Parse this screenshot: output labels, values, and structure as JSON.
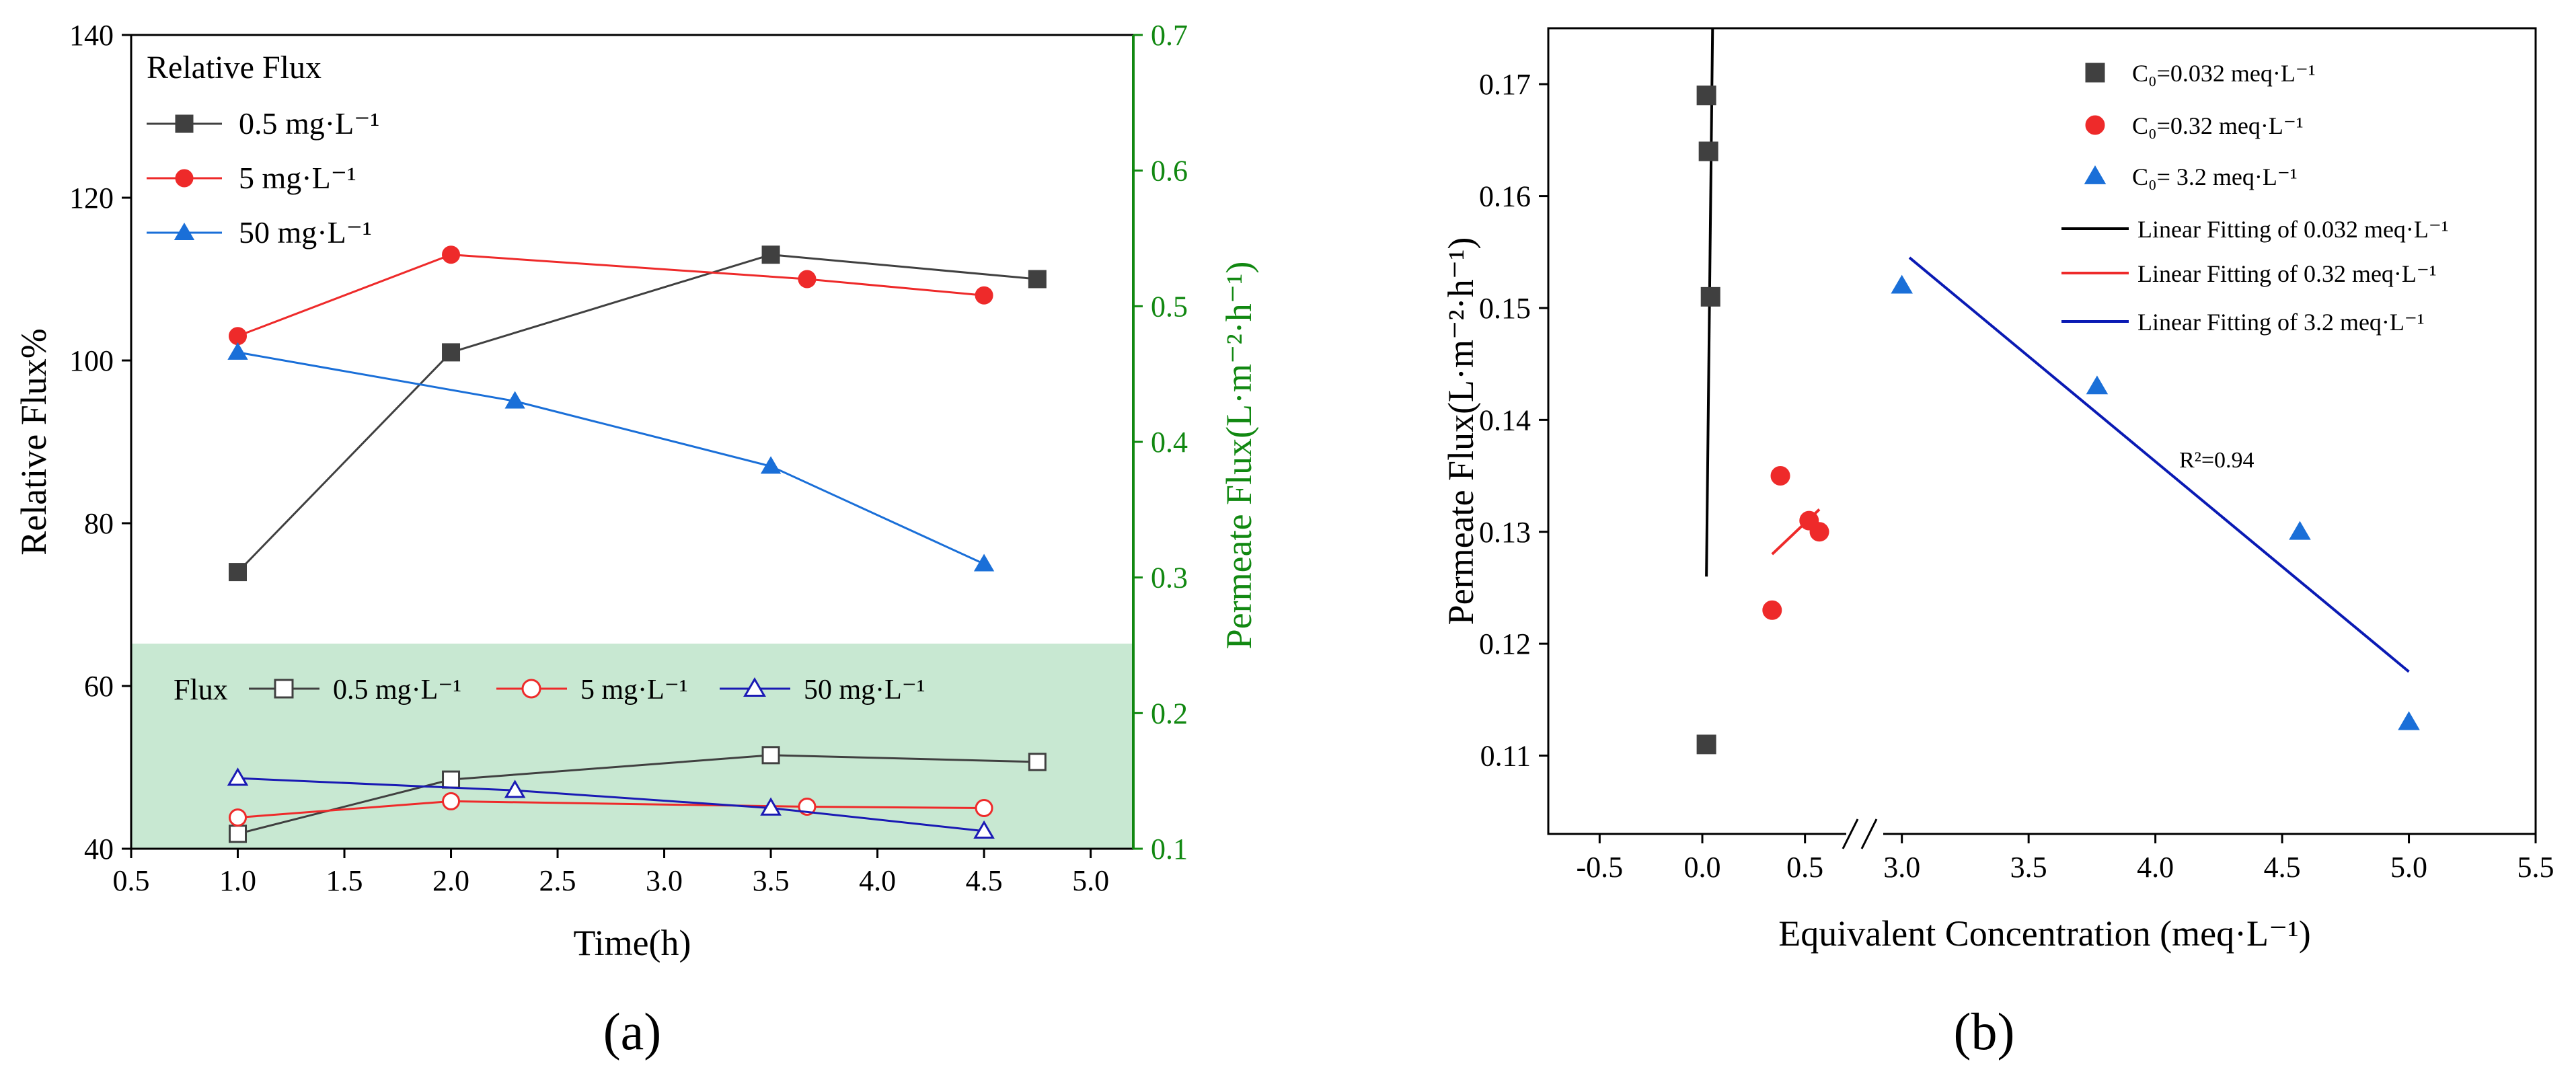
{
  "panel_labels": {
    "a": "(a)",
    "b": "(b)"
  },
  "colors": {
    "black": "#404040",
    "red": "#ee2a2a",
    "blue": "#1a6fd8",
    "green": "#118811",
    "green_fill": "#c8e8d2",
    "navy": "#0a1ab4"
  },
  "chart_data": [
    {
      "type": "line",
      "title": "",
      "xlabel": "Time(h)",
      "ylabel": "Relative Flux%",
      "y2label": "Permeate Flux(L·m⁻²·h⁻¹)",
      "xlim": [
        0.5,
        5.2
      ],
      "ylim": [
        40,
        140
      ],
      "y2lim": [
        0.1,
        0.7
      ],
      "xticks": [
        "0.5",
        "1.0",
        "1.5",
        "2.0",
        "2.5",
        "3.0",
        "3.5",
        "4.0",
        "4.5",
        "5.0"
      ],
      "yticks": [
        "40",
        "60",
        "80",
        "100",
        "120",
        "140"
      ],
      "y2ticks": [
        "0.1",
        "0.2",
        "0.3",
        "0.4",
        "0.5",
        "0.6",
        "0.7"
      ],
      "legend_relative": {
        "title": "Relative Flux",
        "entries": [
          "0.5 mg·L⁻¹",
          "5 mg·L⁻¹",
          "50 mg·L⁻¹"
        ]
      },
      "legend_flux": {
        "title": "Flux",
        "entries": [
          "0.5 mg·L⁻¹",
          "5 mg·L⁻¹",
          "50 mg·L⁻¹"
        ]
      },
      "series": [
        {
          "name": "Relative Flux 0.5 mg·L⁻¹",
          "axis": "left",
          "marker": "square-filled",
          "color": "#404040",
          "x": [
            1.0,
            2.0,
            3.5,
            4.75
          ],
          "y": [
            74,
            101,
            113,
            110
          ]
        },
        {
          "name": "Relative Flux 5 mg·L⁻¹",
          "axis": "left",
          "marker": "circle-filled",
          "color": "#ee2a2a",
          "x": [
            1.0,
            2.0,
            3.67,
            4.5
          ],
          "y": [
            103,
            113,
            110,
            108
          ]
        },
        {
          "name": "Relative Flux 50 mg·L⁻¹",
          "axis": "left",
          "marker": "triangle-filled",
          "color": "#1a6fd8",
          "x": [
            1.0,
            2.3,
            3.5,
            4.5
          ],
          "y": [
            101,
            95,
            87,
            75
          ]
        },
        {
          "name": "Flux 0.5 mg·L⁻¹",
          "axis": "right",
          "marker": "square-open",
          "color": "#404040",
          "x": [
            1.0,
            2.0,
            3.5,
            4.75
          ],
          "y": [
            0.111,
            0.151,
            0.169,
            0.164
          ]
        },
        {
          "name": "Flux 5 mg·L⁻¹",
          "axis": "right",
          "marker": "circle-open",
          "color": "#ee2a2a",
          "x": [
            1.0,
            2.0,
            3.67,
            4.5
          ],
          "y": [
            0.123,
            0.135,
            0.131,
            0.13
          ]
        },
        {
          "name": "Flux 50 mg·L⁻¹",
          "axis": "right",
          "marker": "triangle-open",
          "color": "#1a1ab4",
          "x": [
            1.0,
            2.3,
            3.5,
            4.5
          ],
          "y": [
            0.152,
            0.143,
            0.13,
            0.113
          ]
        }
      ]
    },
    {
      "type": "scatter",
      "title": "",
      "xlabel": "Equivalent Concentration (meq·L⁻¹)",
      "ylabel": "Permeate Flux(L·m⁻²·h⁻¹)",
      "xticks_left": [
        "-0.5",
        "0.0",
        "0.5"
      ],
      "xticks_right": [
        "3.0",
        "3.5",
        "4.0",
        "4.5",
        "5.0",
        "5.5"
      ],
      "x_break": [
        0.75,
        2.9
      ],
      "ylim": [
        0.103,
        0.175
      ],
      "yticks": [
        "0.11",
        "0.12",
        "0.13",
        "0.14",
        "0.15",
        "0.16",
        "0.17"
      ],
      "annotation": "R²=0.94",
      "legend": [
        "C₀=0.032 meq·L⁻¹",
        "C₀=0.32 meq·L⁻¹",
        "C₀= 3.2 meq·L⁻¹",
        "Linear Fitting of 0.032 meq·L⁻¹",
        "Linear Fitting of 0.32 meq·L⁻¹",
        "Linear Fitting of 3.2 meq·L⁻¹"
      ],
      "series": [
        {
          "name": "C₀=0.032 meq·L⁻¹",
          "marker": "square",
          "color": "#404040",
          "x": [
            0.02,
            0.03,
            0.04,
            0.02
          ],
          "y": [
            0.169,
            0.164,
            0.151,
            0.111
          ]
        },
        {
          "name": "C₀=0.32 meq·L⁻¹",
          "marker": "circle",
          "color": "#ee2a2a",
          "x": [
            0.38,
            0.52,
            0.57,
            0.34
          ],
          "y": [
            0.135,
            0.131,
            0.13,
            0.123
          ]
        },
        {
          "name": "C₀= 3.2 meq·L⁻¹",
          "marker": "triangle",
          "color": "#1a6fd8",
          "x": [
            3.0,
            3.77,
            4.57,
            5.0
          ],
          "y": [
            0.152,
            0.143,
            0.13,
            0.113
          ]
        }
      ],
      "fits": [
        {
          "name": "Linear Fitting of 0.032 meq·L⁻¹",
          "color": "#000000",
          "x": [
            0.02,
            0.05
          ],
          "y": [
            0.126,
            0.178
          ]
        },
        {
          "name": "Linear Fitting of 0.32 meq·L⁻¹",
          "color": "#ee2a2a",
          "x": [
            0.34,
            0.57
          ],
          "y": [
            0.128,
            0.132
          ]
        },
        {
          "name": "Linear Fitting of 3.2 meq·L⁻¹",
          "color": "#0a1ab4",
          "x": [
            3.03,
            5.0
          ],
          "y": [
            0.1545,
            0.1175
          ]
        }
      ]
    }
  ]
}
